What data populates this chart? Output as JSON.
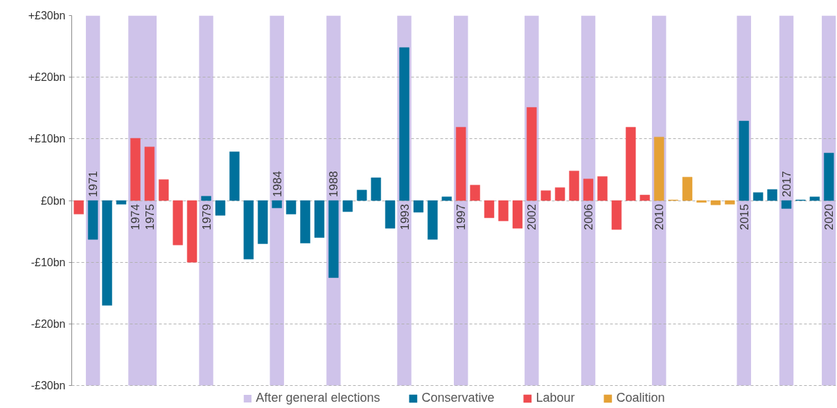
{
  "chart_data": {
    "type": "bar",
    "categories": [
      null,
      "1971",
      null,
      null,
      "1974",
      "1975",
      null,
      null,
      null,
      "1979",
      null,
      null,
      null,
      null,
      "1984",
      null,
      null,
      null,
      "1988",
      null,
      null,
      null,
      null,
      "1993",
      null,
      null,
      null,
      "1997",
      null,
      null,
      null,
      null,
      "2002",
      null,
      null,
      null,
      "2006",
      null,
      null,
      null,
      null,
      "2010",
      null,
      null,
      null,
      null,
      null,
      "2015",
      null,
      null,
      "2017",
      null,
      null,
      "2020"
    ],
    "series": [
      {
        "name": "Conservative",
        "color": "#00719c",
        "values": [
          null,
          -6.3,
          -17.0,
          -0.6,
          null,
          null,
          null,
          null,
          null,
          0.7,
          -2.4,
          7.9,
          -9.5,
          -7.0,
          -1.2,
          -2.2,
          -6.9,
          -6.0,
          -12.5,
          -1.8,
          1.7,
          3.7,
          -4.5,
          24.8,
          -1.9,
          -6.3,
          0.6,
          null,
          null,
          null,
          null,
          null,
          null,
          null,
          null,
          null,
          null,
          null,
          null,
          null,
          null,
          null,
          null,
          null,
          null,
          null,
          null,
          12.9,
          1.3,
          1.8,
          -1.3,
          0.1,
          0.6,
          7.7
        ]
      },
      {
        "name": "Labour",
        "color": "#ef4b4f",
        "values": [
          -2.2,
          null,
          null,
          null,
          10.1,
          8.7,
          3.4,
          -7.2,
          -10.0,
          null,
          null,
          null,
          null,
          null,
          null,
          null,
          null,
          null,
          null,
          null,
          null,
          null,
          null,
          null,
          null,
          null,
          null,
          11.9,
          2.5,
          -2.8,
          -3.3,
          -4.5,
          15.1,
          1.6,
          2.1,
          4.8,
          3.5,
          3.9,
          -4.7,
          11.9,
          0.9,
          null,
          null,
          null,
          null,
          null,
          null,
          null,
          null,
          null,
          null,
          null,
          null,
          null
        ]
      },
      {
        "name": "Coalition",
        "color": "#e5a136",
        "values": [
          null,
          null,
          null,
          null,
          null,
          null,
          null,
          null,
          null,
          null,
          null,
          null,
          null,
          null,
          null,
          null,
          null,
          null,
          null,
          null,
          null,
          null,
          null,
          null,
          null,
          null,
          null,
          null,
          null,
          null,
          null,
          null,
          null,
          null,
          null,
          null,
          null,
          null,
          null,
          null,
          null,
          10.3,
          0.1,
          3.8,
          -0.3,
          -0.7,
          -0.6,
          null,
          null,
          null,
          null,
          null,
          null,
          null
        ]
      }
    ],
    "bands": [
      {
        "axis": "x",
        "from": "1971",
        "to": "1971",
        "label": "After general elections",
        "color": "#cfc3ea"
      },
      {
        "axis": "x",
        "from": "1974",
        "to": "1975",
        "color": "#cfc3ea"
      },
      {
        "axis": "x",
        "from": "1979",
        "to": "1979",
        "color": "#cfc3ea"
      },
      {
        "axis": "x",
        "from": "1984",
        "to": "1984",
        "color": "#cfc3ea"
      },
      {
        "axis": "x",
        "from": "1988",
        "to": "1988",
        "color": "#cfc3ea"
      },
      {
        "axis": "x",
        "from": "1993",
        "to": "1993",
        "color": "#cfc3ea"
      },
      {
        "axis": "x",
        "from": "1997",
        "to": "1997",
        "color": "#cfc3ea"
      },
      {
        "axis": "x",
        "from": "2002",
        "to": "2002",
        "color": "#cfc3ea"
      },
      {
        "axis": "x",
        "from": "2006",
        "to": "2006",
        "color": "#cfc3ea"
      },
      {
        "axis": "x",
        "from": "2010",
        "to": "2010",
        "color": "#cfc3ea"
      },
      {
        "axis": "x",
        "from": "2015",
        "to": "2015",
        "color": "#cfc3ea"
      },
      {
        "axis": "x",
        "from": "2017",
        "to": "2017",
        "color": "#cfc3ea"
      },
      {
        "axis": "x",
        "from": "2020",
        "to": "2020",
        "color": "#cfc3ea"
      }
    ],
    "ylim": [
      -30,
      30
    ],
    "yticks": [
      {
        "value": -30,
        "label": "-£30bn"
      },
      {
        "value": -20,
        "label": "-£20bn"
      },
      {
        "value": -10,
        "label": "-£10bn"
      },
      {
        "value": 0,
        "label": "£0bn"
      },
      {
        "value": 10,
        "label": "+£10bn"
      },
      {
        "value": 20,
        "label": "+£20bn"
      },
      {
        "value": 30,
        "label": "+£30bn"
      }
    ],
    "grid": "y",
    "legend": "bottom"
  }
}
